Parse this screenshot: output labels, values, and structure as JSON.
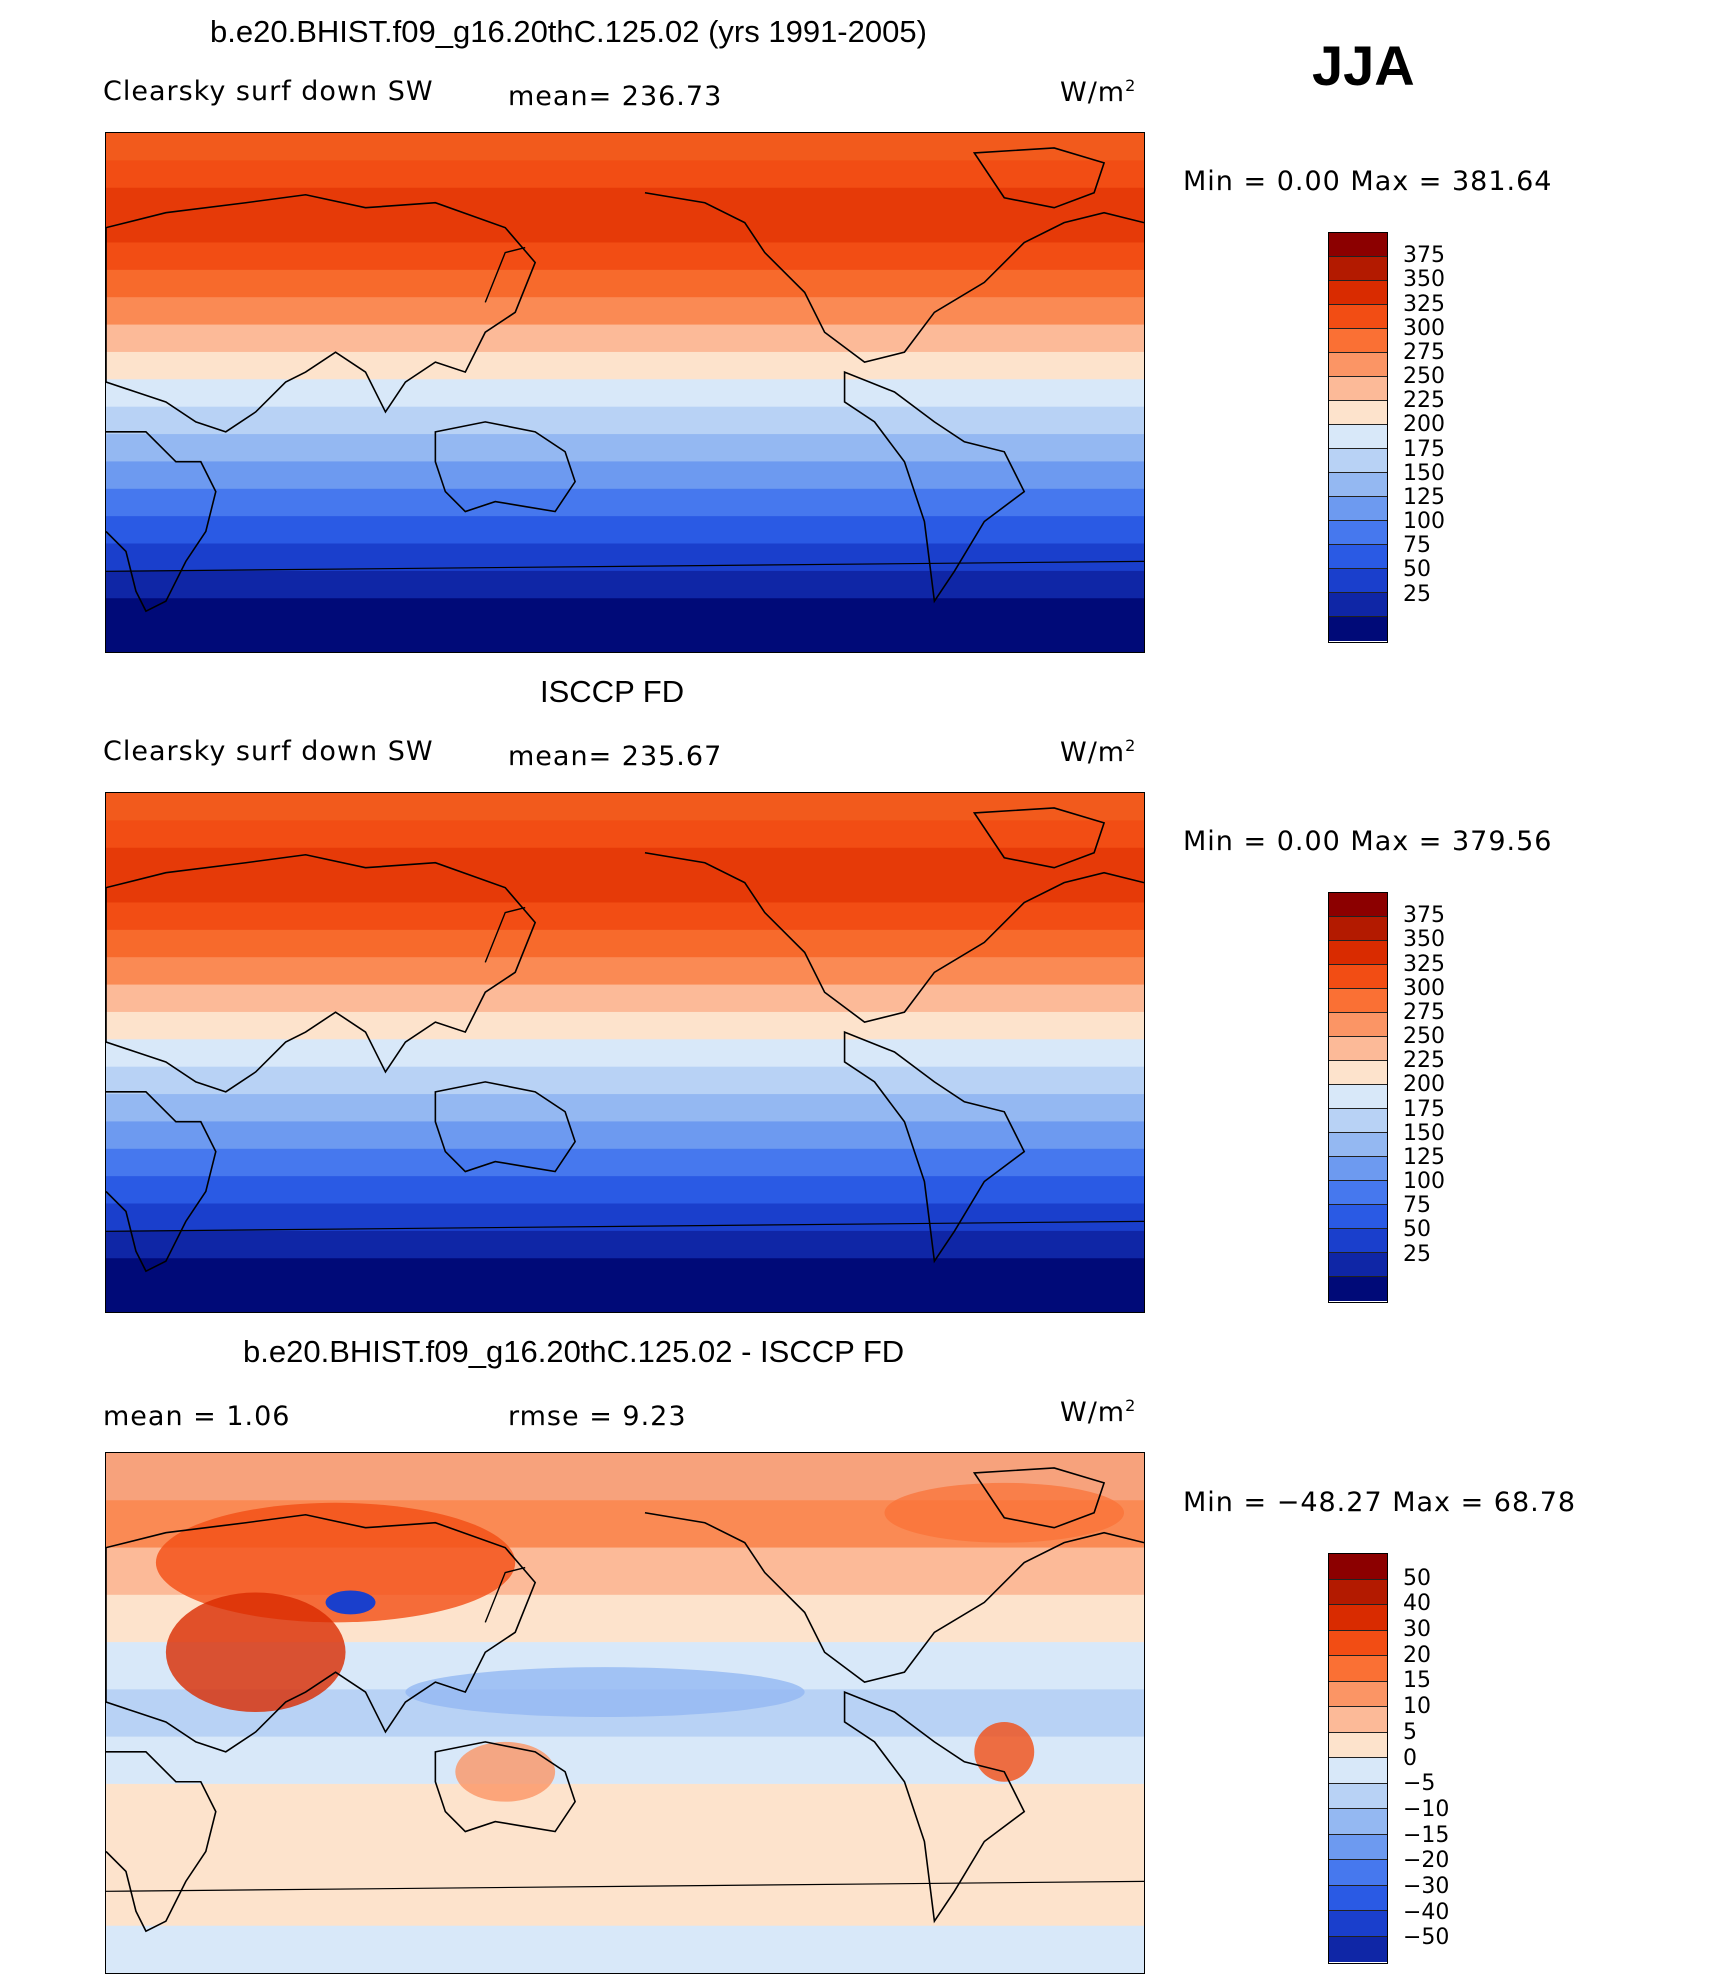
{
  "season": "JJA",
  "panels": [
    {
      "title": "b.e20.BHIST.f09_g16.20thC.125.02 (yrs 1991-2005)",
      "variable": "Clearsky surf down SW",
      "stat": "mean= 236.73",
      "units": "W/m",
      "units_exp": "2",
      "minmax": "Min =    0.00 Max = 381.64",
      "colorbar": {
        "labels": [
          "375",
          "350",
          "325",
          "300",
          "275",
          "250",
          "225",
          "200",
          "175",
          "150",
          "125",
          "100",
          "75",
          "50",
          "25"
        ],
        "colors": [
          "#8c0000",
          "#b31a00",
          "#d92b00",
          "#f24d14",
          "#fa7034",
          "#fb9565",
          "#fcba98",
          "#fde3cc",
          "#d8e8f9",
          "#b8d2f5",
          "#94b8f2",
          "#6d9af0",
          "#4678ee",
          "#2a5ae4",
          "#1a3fcc",
          "#0f26a6",
          "#000a78"
        ]
      },
      "map_bands": [
        "#f25a1c",
        "#f24d14",
        "#e63a08",
        "#e63a08",
        "#f24d14",
        "#f76a2c",
        "#fa8a54",
        "#fcba98",
        "#fde3cc",
        "#d8e8f9",
        "#b8d2f5",
        "#94b8f2",
        "#6d9af0",
        "#4678ee",
        "#2a5ae4",
        "#1a3fcc",
        "#0f26a6",
        "#000a78",
        "#000a78"
      ]
    },
    {
      "title": "ISCCP FD",
      "variable": "Clearsky surf down SW",
      "stat": "mean= 235.67",
      "units": "W/m",
      "units_exp": "2",
      "minmax": "Min =    0.00 Max = 379.56",
      "colorbar": {
        "labels": [
          "375",
          "350",
          "325",
          "300",
          "275",
          "250",
          "225",
          "200",
          "175",
          "150",
          "125",
          "100",
          "75",
          "50",
          "25"
        ],
        "colors": [
          "#8c0000",
          "#b31a00",
          "#d92b00",
          "#f24d14",
          "#fa7034",
          "#fb9565",
          "#fcba98",
          "#fde3cc",
          "#d8e8f9",
          "#b8d2f5",
          "#94b8f2",
          "#6d9af0",
          "#4678ee",
          "#2a5ae4",
          "#1a3fcc",
          "#0f26a6",
          "#000a78"
        ]
      },
      "map_bands": [
        "#f25a1c",
        "#f24d14",
        "#e63a08",
        "#e63a08",
        "#f24d14",
        "#f76a2c",
        "#fa8a54",
        "#fcba98",
        "#fde3cc",
        "#d8e8f9",
        "#b8d2f5",
        "#94b8f2",
        "#6d9af0",
        "#4678ee",
        "#2a5ae4",
        "#1a3fcc",
        "#0f26a6",
        "#000a78",
        "#000a78"
      ]
    },
    {
      "title": "b.e20.BHIST.f09_g16.20thC.125.02 - ISCCP FD",
      "variable": "mean =     1.06",
      "stat": "rmse =     9.23",
      "units": "W/m",
      "units_exp": "2",
      "minmax": "Min = −48.27 Max =   68.78",
      "colorbar": {
        "labels": [
          "50",
          "40",
          "30",
          "20",
          "15",
          "10",
          "5",
          "0",
          "−5",
          "−10",
          "−15",
          "−20",
          "−30",
          "−40",
          "−50"
        ],
        "colors": [
          "#8c0000",
          "#b31a00",
          "#d92b00",
          "#f24d14",
          "#fa7034",
          "#fb9565",
          "#fcba98",
          "#fde3cc",
          "#d8e8f9",
          "#b8d2f5",
          "#94b8f2",
          "#6d9af0",
          "#4678ee",
          "#2a5ae4",
          "#1a3fcc",
          "#0f26a6"
        ]
      },
      "map_bands": [
        "#f7a27c",
        "#fa8a54",
        "#fcba98",
        "#fde3cc",
        "#d8e8f9",
        "#b8d2f5",
        "#d8e8f9",
        "#fde3cc",
        "#fde3cc",
        "#fde3cc",
        "#d8e8f9"
      ]
    }
  ]
}
